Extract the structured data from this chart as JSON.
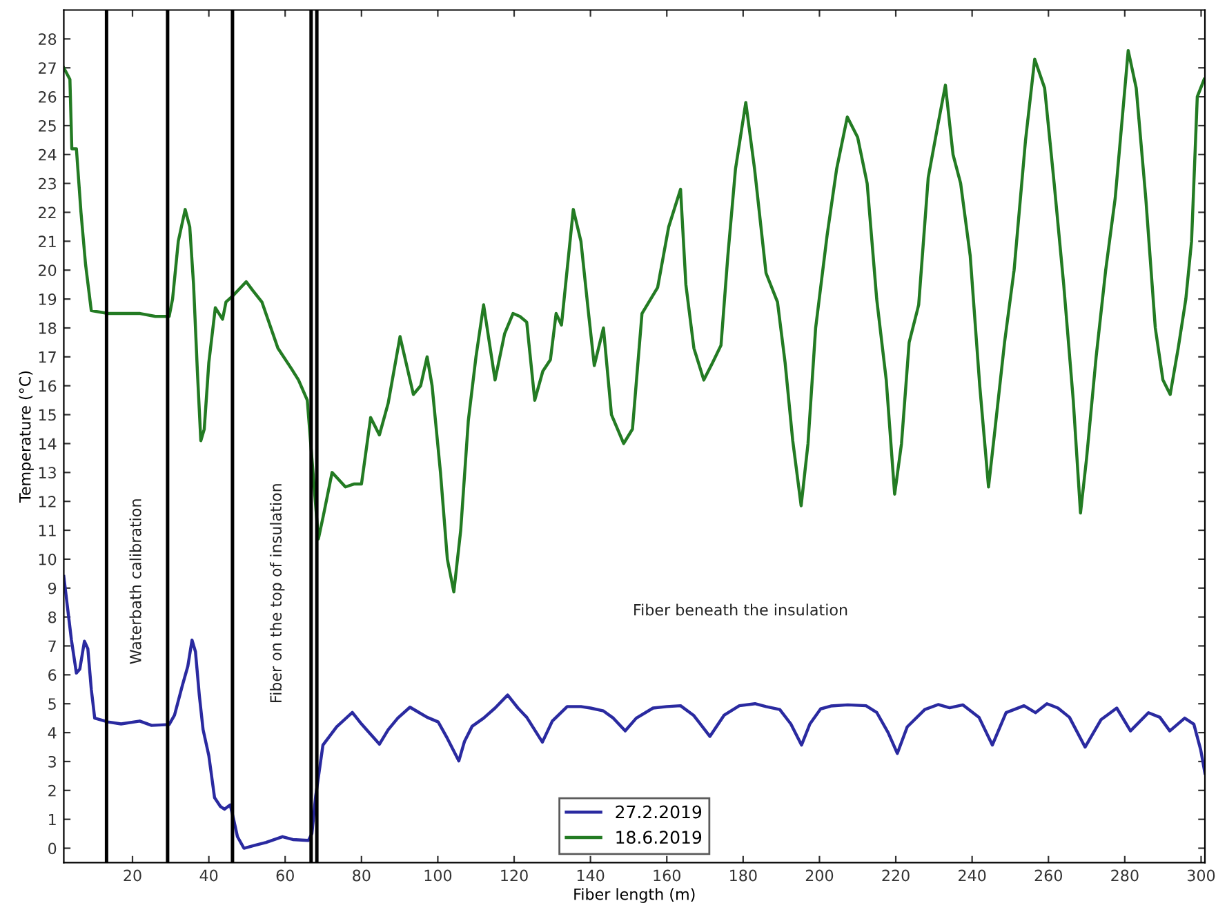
{
  "chart_data": {
    "type": "line",
    "xlabel": "Fiber length (m)",
    "ylabel": "Temperature (°C)",
    "xlim": [
      2,
      301
    ],
    "ylim": [
      -0.5,
      29
    ],
    "xticks": [
      20,
      40,
      60,
      80,
      100,
      120,
      140,
      160,
      180,
      200,
      220,
      240,
      260,
      280,
      300
    ],
    "yticks": [
      0,
      1,
      2,
      3,
      4,
      5,
      6,
      7,
      8,
      9,
      10,
      11,
      12,
      13,
      14,
      15,
      16,
      17,
      18,
      19,
      20,
      21,
      22,
      23,
      24,
      25,
      26,
      27,
      28
    ],
    "grid": false,
    "legend": "bottom",
    "marker": "none",
    "line_style": "solid",
    "series": [
      {
        "name": "27.2.2019",
        "color": "#2a2aa0",
        "x": [
          2,
          3,
          4,
          5.3,
          6.2,
          7.4,
          8.3,
          9.2,
          10.1,
          13.6,
          17,
          21.9,
          25,
          29.6,
          31,
          33,
          34.5,
          35.6,
          36.5,
          37.5,
          38.5,
          40,
          41.5,
          43,
          44.1,
          45.6,
          46.5,
          47.5,
          49.2,
          52,
          55,
          59.3,
          62,
          66.1,
          67,
          68,
          69.9,
          73.5,
          77.6,
          80,
          82,
          84.7,
          87,
          89.5,
          92.7,
          95,
          97.2,
          100.1,
          102.5,
          105.5,
          107,
          109,
          112,
          115,
          118.3,
          121,
          123.3,
          127.4,
          130,
          133.9,
          137.5,
          140,
          143.4,
          146,
          149.1,
          152,
          156.4,
          160,
          163.6,
          167,
          171.3,
          175,
          179,
          183.1,
          186,
          189.6,
          192.5,
          195.3,
          197.5,
          200.3,
          203,
          207.4,
          212.2,
          215,
          218,
          220.4,
          223,
          227.6,
          231.1,
          234.1,
          237.6,
          241.8,
          245.3,
          248.9,
          253.6,
          256.6,
          259.6,
          262.5,
          265.5,
          269.6,
          273.8,
          277.9,
          281.5,
          286.2,
          289.2,
          291.8,
          295.7,
          298.1,
          299.9,
          301
        ],
        "values": [
          9.4,
          8.3,
          7.2,
          6.06,
          6.2,
          7.16,
          6.9,
          5.5,
          4.5,
          4.37,
          4.3,
          4.4,
          4.25,
          4.28,
          4.6,
          5.6,
          6.3,
          7.2,
          6.8,
          5.3,
          4.1,
          3.2,
          1.75,
          1.45,
          1.35,
          1.5,
          1.0,
          0.4,
          0.0,
          0.1,
          0.2,
          0.4,
          0.3,
          0.27,
          0.5,
          1.8,
          3.57,
          4.2,
          4.7,
          4.3,
          4.0,
          3.6,
          4.1,
          4.5,
          4.88,
          4.7,
          4.53,
          4.37,
          3.8,
          3.02,
          3.7,
          4.22,
          4.5,
          4.85,
          5.3,
          4.85,
          4.53,
          3.67,
          4.4,
          4.9,
          4.9,
          4.85,
          4.75,
          4.5,
          4.06,
          4.5,
          4.85,
          4.9,
          4.93,
          4.6,
          3.87,
          4.6,
          4.93,
          5.0,
          4.9,
          4.8,
          4.3,
          3.57,
          4.3,
          4.82,
          4.92,
          4.96,
          4.93,
          4.7,
          4.0,
          3.28,
          4.2,
          4.8,
          4.97,
          4.86,
          4.96,
          4.53,
          3.57,
          4.69,
          4.93,
          4.69,
          5.0,
          4.85,
          4.53,
          3.5,
          4.45,
          4.85,
          4.06,
          4.69,
          4.53,
          4.06,
          4.5,
          4.29,
          3.4,
          2.6
        ]
      },
      {
        "name": "18.6.2019",
        "color": "#237b23",
        "x": [
          2,
          3.6,
          4.1,
          5.3,
          6.5,
          7.7,
          9.2,
          13.6,
          18,
          22,
          26,
          29.6,
          30.5,
          32,
          33.8,
          35,
          36,
          37,
          37.9,
          38.8,
          40,
          41.7,
          43.6,
          44.5,
          46.2,
          49.8,
          51.5,
          53.9,
          56,
          58.1,
          61.6,
          63.5,
          65.8,
          67,
          68.7,
          70,
          72.3,
          75.8,
          78,
          80,
          82.4,
          84.7,
          87,
          90.1,
          93.6,
          95.5,
          97.2,
          98.5,
          100.7,
          102.5,
          104.2,
          106,
          108,
          110,
          112,
          115,
          117.5,
          119.7,
          121.5,
          123.3,
          125.4,
          127.5,
          129.5,
          131,
          132.4,
          135.5,
          137.5,
          139.5,
          141,
          143.4,
          145.5,
          148.7,
          151,
          153.5,
          157.6,
          160.5,
          163.6,
          165,
          167.1,
          169.7,
          172,
          174.2,
          176,
          178,
          180.7,
          183,
          186,
          189,
          191,
          193,
          195.2,
          197,
          199,
          202,
          204.5,
          207.3,
          210,
          212.5,
          215,
          217.5,
          219.7,
          221.5,
          223.5,
          226,
          228.5,
          231,
          233,
          235,
          237,
          239.5,
          242,
          244.3,
          246,
          248.5,
          251,
          254,
          256.4,
          259,
          261.5,
          264,
          266.5,
          268.4,
          270,
          272.5,
          275,
          277.5,
          280.9,
          283,
          285.5,
          288,
          290,
          291.9,
          294,
          296,
          297.5,
          299,
          300.8
        ],
        "values": [
          27.0,
          26.6,
          24.2,
          24.2,
          22.0,
          20.2,
          18.6,
          18.5,
          18.5,
          18.5,
          18.4,
          18.4,
          19.0,
          21.0,
          22.1,
          21.5,
          19.5,
          16.5,
          14.1,
          14.5,
          16.8,
          18.7,
          18.3,
          18.9,
          19.1,
          19.6,
          19.3,
          18.9,
          18.1,
          17.3,
          16.6,
          16.2,
          15.5,
          13.5,
          10.7,
          11.5,
          13.0,
          12.5,
          12.6,
          12.6,
          14.9,
          14.3,
          15.4,
          17.7,
          15.7,
          16.0,
          17.0,
          16.0,
          13.0,
          10.0,
          8.87,
          11.0,
          14.8,
          17.0,
          18.8,
          16.2,
          17.8,
          18.5,
          18.4,
          18.2,
          15.5,
          16.5,
          16.9,
          18.5,
          18.1,
          22.1,
          21.0,
          18.5,
          16.7,
          18.0,
          15.0,
          14.0,
          14.5,
          18.5,
          19.4,
          21.5,
          22.8,
          19.5,
          17.3,
          16.2,
          16.8,
          17.4,
          20.5,
          23.5,
          25.8,
          23.5,
          19.9,
          18.9,
          16.8,
          14.1,
          11.85,
          14.0,
          18.0,
          21.2,
          23.5,
          25.3,
          24.6,
          23.0,
          19.0,
          16.2,
          12.25,
          14.0,
          17.5,
          18.8,
          23.2,
          25.0,
          26.4,
          24.0,
          23.0,
          20.5,
          16.0,
          12.5,
          14.5,
          17.5,
          20.0,
          24.5,
          27.3,
          26.3,
          23.0,
          19.5,
          15.5,
          11.6,
          13.5,
          17.0,
          20.0,
          22.5,
          27.6,
          26.3,
          22.5,
          18.0,
          16.2,
          15.7,
          17.3,
          19.0,
          21.0,
          26.0,
          26.6
        ]
      }
    ],
    "ref_lines": [
      {
        "axis": "x",
        "value": 13.2,
        "color": "#000000"
      },
      {
        "axis": "x",
        "value": 29.2,
        "color": "#000000"
      },
      {
        "axis": "x",
        "value": 46.2,
        "color": "#000000"
      },
      {
        "axis": "x",
        "value": 66.8,
        "color": "#000000"
      },
      {
        "axis": "x",
        "value": 68.3,
        "color": "#000000"
      }
    ],
    "annotations": [
      "Waterbath calibration",
      "Fiber on the top of insulation",
      "Fiber beneath the insulation"
    ]
  }
}
